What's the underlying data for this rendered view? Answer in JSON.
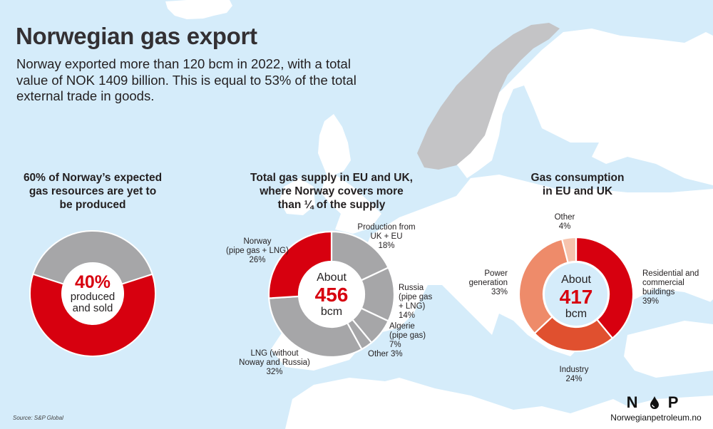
{
  "header": {
    "title": "Norwegian gas export",
    "subtitle": "Norway exported more than 120 bcm in 2022, with a total value of NOK 1409 billion. This is equal to 53% of the total external trade in goods."
  },
  "colors": {
    "sea": "#d5ecfa",
    "land": "#ffffff",
    "norway_land": "#c4c4c6",
    "red": "#d7000f",
    "gray": "#a6a6a8",
    "industry": "#e0502f",
    "power": "#ee8b6a",
    "other_light": "#f6c3ad",
    "center_white": "#ffffff",
    "center_blue": "#d5ecfa"
  },
  "charts": {
    "reserves": {
      "title_lines": [
        "60% of Norway’s expected",
        "gas resources are yet to",
        "be produced"
      ],
      "center_value": "40%",
      "center_lines": [
        "produced",
        "and sold"
      ]
    },
    "supply": {
      "title_lines": [
        "Total gas supply in EU and UK,",
        "where Norway covers more",
        "than ¼ of the supply"
      ],
      "center_top": "About",
      "center_value": "456",
      "center_unit": "bcm",
      "labels": {
        "uk_eu": [
          "Production from",
          "UK + EU",
          "18%"
        ],
        "russia": [
          "Russia",
          "(pipe gas",
          "+ LNG)",
          "14%"
        ],
        "algerie": [
          "Algerie",
          "(pipe gas)",
          "7%"
        ],
        "other": [
          "Other 3%"
        ],
        "lng": [
          "LNG (without",
          "Noway and Russia)",
          "32%"
        ],
        "norway": [
          "Norway",
          "(pipe gas + LNG)",
          "26%"
        ]
      }
    },
    "consumption": {
      "title_lines": [
        "Gas consumption",
        "in EU and UK"
      ],
      "center_top": "About",
      "center_value": "417",
      "center_unit": "bcm",
      "labels": {
        "other": [
          "Other",
          "4%"
        ],
        "residential": [
          "Residential and",
          "commercial",
          "buildings",
          "39%"
        ],
        "industry": [
          "Industry",
          "24%"
        ],
        "power": [
          "Power",
          "generation",
          "33%"
        ]
      }
    }
  },
  "chart_data": [
    {
      "type": "pie",
      "title": "60% of Norway’s expected gas resources are yet to be produced",
      "categories": [
        "Produced and sold",
        "Yet to be produced"
      ],
      "values": [
        40,
        60
      ],
      "unit": "%",
      "center_label": "40% produced and sold"
    },
    {
      "type": "pie",
      "title": "Total gas supply in EU and UK, where Norway covers more than ¼ of the supply",
      "categories": [
        "Production from UK + EU",
        "Russia (pipe gas + LNG)",
        "Algerie (pipe gas)",
        "Other",
        "LNG (without Noway and Russia)",
        "Norway (pipe gas + LNG)"
      ],
      "values": [
        18,
        14,
        7,
        3,
        32,
        26
      ],
      "unit": "%",
      "total": "About 456 bcm"
    },
    {
      "type": "pie",
      "title": "Gas consumption in EU and UK",
      "categories": [
        "Residential and commercial buildings",
        "Industry",
        "Power generation",
        "Other"
      ],
      "values": [
        39,
        24,
        33,
        4
      ],
      "unit": "%",
      "total": "About 417 bcm"
    }
  ],
  "footer": {
    "source": "Source: S&P Global",
    "logo_mark": "N  P",
    "logo_url": "Norwegianpetroleum.no"
  }
}
